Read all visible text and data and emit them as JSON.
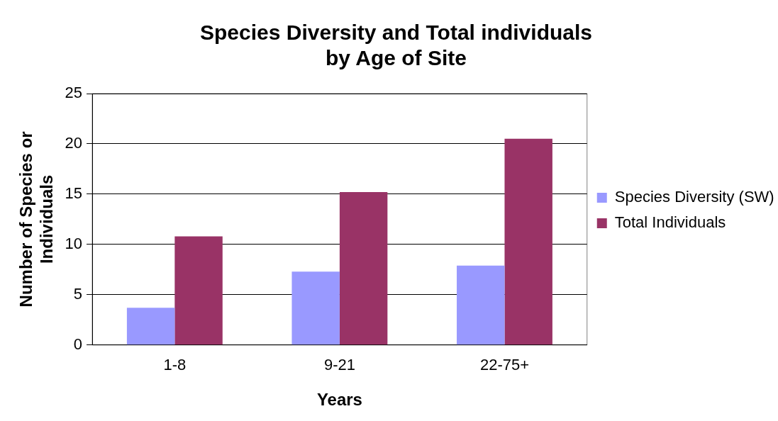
{
  "chart_data": {
    "type": "bar",
    "title": "Species Diversity and Total individuals\nby Age of Site",
    "xlabel": "Years",
    "ylabel": "Number of Species or\nIndividuals",
    "categories": [
      "1-8",
      "9-21",
      "22-75+"
    ],
    "series": [
      {
        "name": "Species Diversity (SW)",
        "color": "#9999ff",
        "values": [
          3.7,
          7.3,
          7.9
        ]
      },
      {
        "name": "Total Individuals",
        "color": "#993366",
        "values": [
          10.8,
          15.2,
          20.5
        ]
      }
    ],
    "ylim": [
      0,
      25
    ],
    "yticks": [
      0,
      5,
      10,
      15,
      20,
      25
    ],
    "grid": "y",
    "legend": "right"
  }
}
